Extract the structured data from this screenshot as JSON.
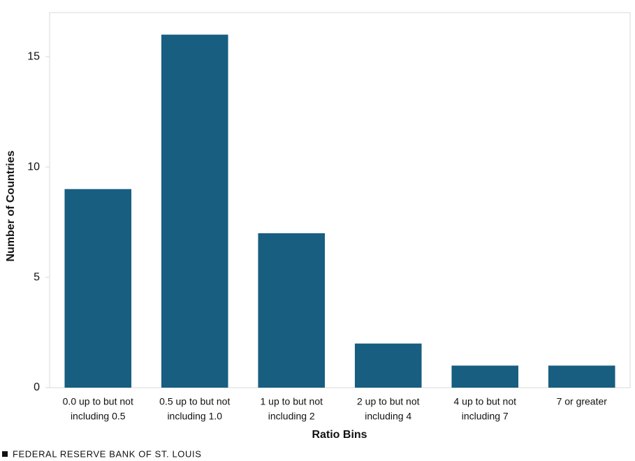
{
  "chart_data": {
    "type": "bar",
    "x_label": "Ratio Bins",
    "y_label": "Number of Countries",
    "categories": [
      [
        "0.0 up to but not",
        "including 0.5"
      ],
      [
        "0.5 up to but not",
        "including 1.0"
      ],
      [
        "1 up to but not",
        "including 2"
      ],
      [
        "2 up to but not",
        "including 4"
      ],
      [
        "4 up to but not",
        "including 7"
      ],
      [
        "7 or greater"
      ]
    ],
    "values": [
      9,
      16,
      7,
      2,
      1,
      1
    ],
    "color": "#175e80",
    "ylim": [
      0,
      17
    ],
    "yticks": [
      0,
      5,
      10,
      15
    ],
    "grid": false
  },
  "footer": "FEDERAL RESERVE BANK OF ST. LOUIS"
}
